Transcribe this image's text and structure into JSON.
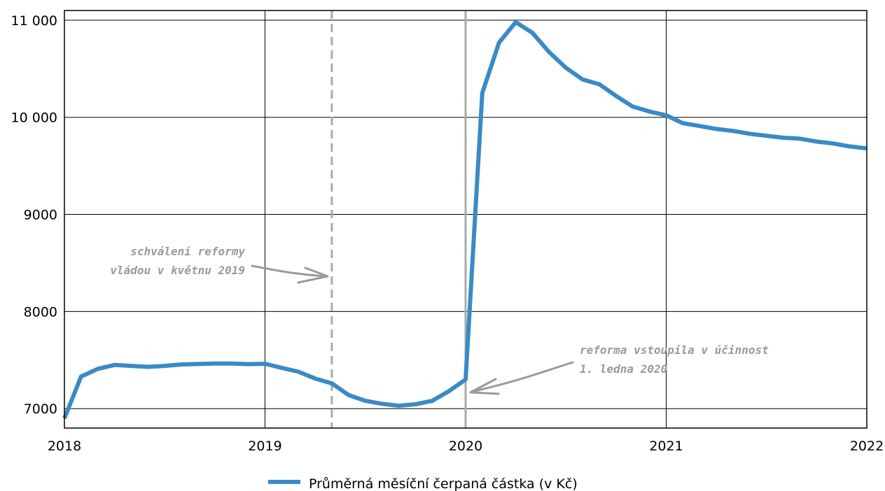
{
  "chart_data": {
    "type": "line",
    "title": "",
    "xlabel": "",
    "ylabel": "",
    "xlim": [
      2018,
      2022
    ],
    "ylim": [
      6800,
      11100
    ],
    "x_ticks": [
      2018,
      2019,
      2020,
      2021,
      2022
    ],
    "x_tick_labels": [
      "2018",
      "2019",
      "2020",
      "2021",
      "2022"
    ],
    "y_ticks": [
      7000,
      8000,
      9000,
      10000,
      11000
    ],
    "y_tick_labels": [
      "7000",
      "8000",
      "9000",
      "10 000",
      "11 000"
    ],
    "grid": true,
    "legend_position": "bottom-center",
    "series": [
      {
        "name": "Průměrná měsíční čerpaná částka (v Kč)",
        "color": "#3a8ac6",
        "x": [
          2018.0,
          2018.083,
          2018.167,
          2018.25,
          2018.333,
          2018.417,
          2018.5,
          2018.583,
          2018.667,
          2018.75,
          2018.833,
          2018.917,
          2019.0,
          2019.083,
          2019.167,
          2019.25,
          2019.333,
          2019.417,
          2019.5,
          2019.583,
          2019.667,
          2019.75,
          2019.833,
          2019.917,
          2020.0,
          2020.083,
          2020.167,
          2020.25,
          2020.333,
          2020.417,
          2020.5,
          2020.583,
          2020.667,
          2020.75,
          2020.833,
          2020.917,
          2021.0,
          2021.083,
          2021.167,
          2021.25,
          2021.333,
          2021.417,
          2021.5,
          2021.583,
          2021.667,
          2021.75,
          2021.833,
          2021.917,
          2022.0
        ],
        "values": [
          6900,
          7330,
          7410,
          7450,
          7440,
          7430,
          7440,
          7455,
          7460,
          7465,
          7465,
          7458,
          7462,
          7420,
          7380,
          7310,
          7260,
          7140,
          7080,
          7050,
          7030,
          7045,
          7080,
          7180,
          7300,
          10250,
          10770,
          10980,
          10870,
          10670,
          10510,
          10390,
          10340,
          10220,
          10110,
          10060,
          10020,
          9940,
          9910,
          9880,
          9860,
          9830,
          9810,
          9790,
          9780,
          9750,
          9730,
          9700,
          9680
        ]
      }
    ],
    "events": [
      {
        "x": 2019.333,
        "style": "dashed",
        "color": "#aaaaaa",
        "text": [
          "schválení reformy",
          "vládou v květnu 2019"
        ]
      },
      {
        "x": 2020.0,
        "style": "solid",
        "color": "#aaaaaa",
        "text": [
          "reforma vstoupila v účinnost",
          "1. ledna 2020"
        ]
      }
    ]
  }
}
